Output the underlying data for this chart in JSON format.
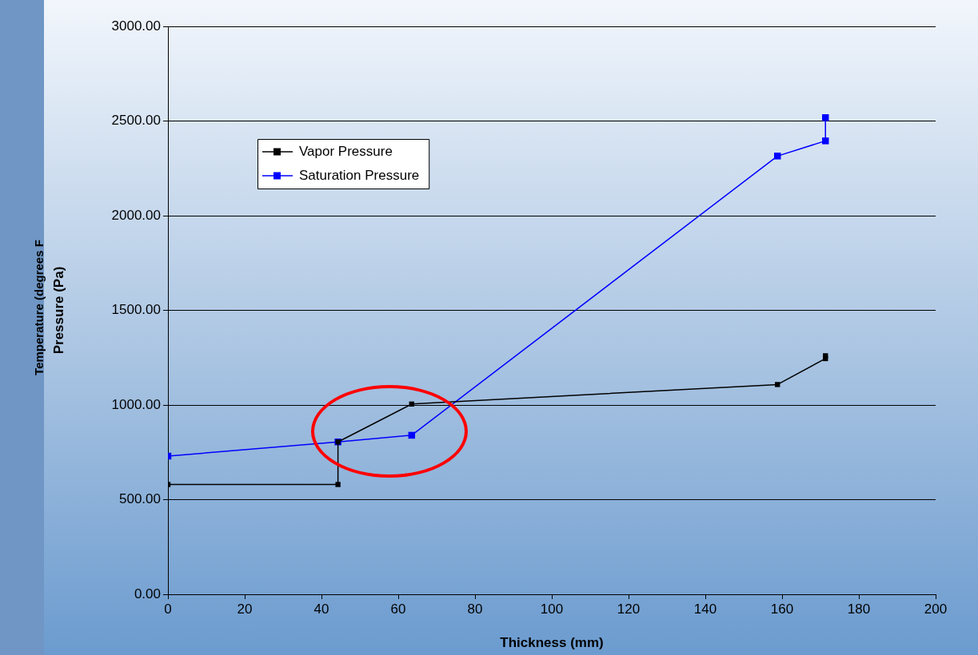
{
  "chart_data": {
    "type": "line",
    "xlabel": "Thickness (mm)",
    "ylabel": "Pressure (Pa)",
    "xlim": [
      0,
      200
    ],
    "xticks": [
      0,
      20,
      40,
      60,
      80,
      100,
      120,
      140,
      160,
      180,
      200
    ],
    "ylim": [
      0,
      3000
    ],
    "yticks": [
      {
        "value": 0,
        "label": "0.00"
      },
      {
        "value": 500,
        "label": "500.00"
      },
      {
        "value": 1000,
        "label": "1000.00"
      },
      {
        "value": 1500,
        "label": "1500.00"
      },
      {
        "value": 2000,
        "label": "2000.00"
      },
      {
        "value": 2500,
        "label": "2500.00"
      },
      {
        "value": 3000,
        "label": "3000.00"
      }
    ],
    "grid": "y",
    "legend": "top left",
    "marker": "square",
    "line_style": "solid",
    "annotations": [
      "Temperature (degrees F"
    ],
    "series": [
      {
        "name": "Vapor Pressure",
        "color": "#000000",
        "x": [
          0,
          44.3,
          44.3,
          63.5,
          158.8,
          171.3,
          171.3
        ],
        "values": [
          580,
          580,
          805,
          1005,
          1108,
          1245,
          1260
        ]
      },
      {
        "name": "Saturation Pressure",
        "color": "#0000ff",
        "x": [
          0,
          44.3,
          63.5,
          158.8,
          171.3,
          171.3
        ],
        "values": [
          730,
          805,
          840,
          2315,
          2395,
          2518
        ]
      }
    ]
  }
}
